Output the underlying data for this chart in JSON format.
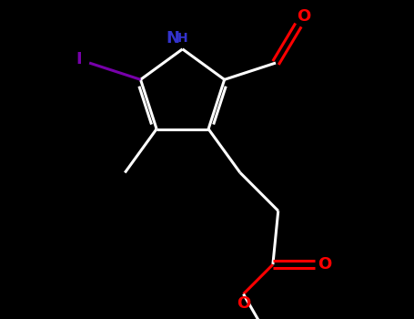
{
  "bg_color": "#000000",
  "bond_color": "#ffffff",
  "bond_lw": 2.2,
  "nh_color": "#3333cc",
  "iodo_color": "#7700aa",
  "oxygen_color": "#ff0000",
  "figsize": [
    4.55,
    3.5
  ],
  "dpi": 100,
  "font_size_atom": 13,
  "font_size_h": 10,
  "xlim": [
    -2.8,
    3.2
  ],
  "ylim": [
    -4.0,
    2.5
  ]
}
